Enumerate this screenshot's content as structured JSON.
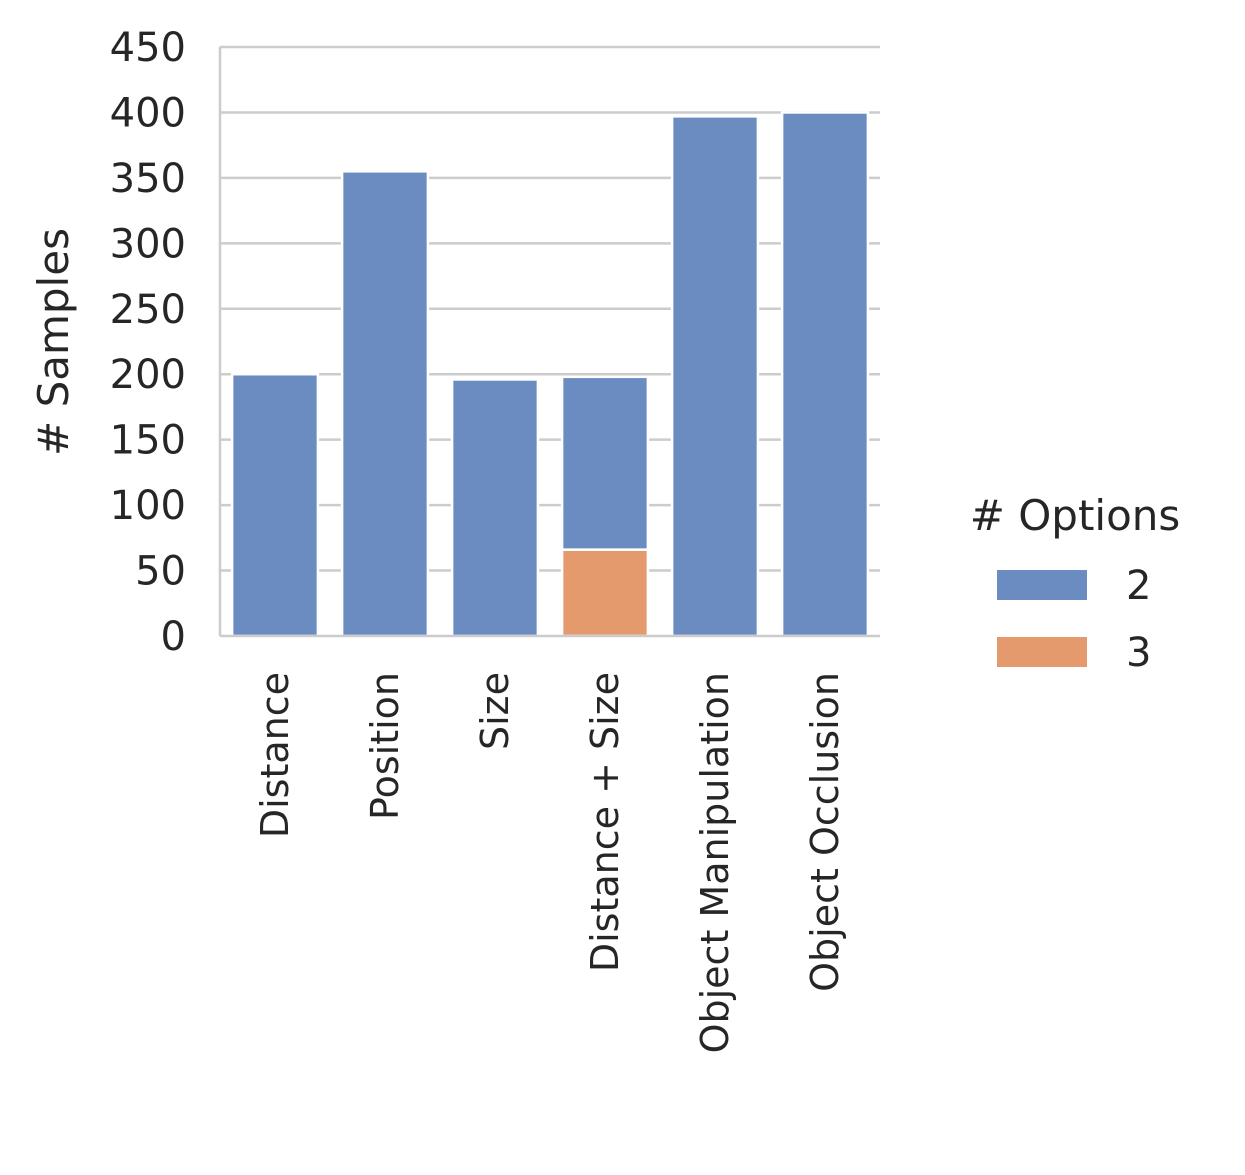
{
  "chart_data": {
    "type": "bar",
    "stacked": true,
    "title": "",
    "xlabel": "",
    "ylabel": "# Samples",
    "ylim": [
      0,
      450
    ],
    "yticks": [
      0,
      50,
      100,
      150,
      200,
      250,
      300,
      350,
      400,
      450
    ],
    "grid": "horizontal",
    "categories": [
      "Distance",
      "Position",
      "Size",
      "Distance + Size",
      "Object Manipulation",
      "Object Occlusion"
    ],
    "series": [
      {
        "name": "2",
        "color": "#6b8cc0",
        "values": [
          200,
          355,
          196,
          132,
          397,
          400
        ]
      },
      {
        "name": "3",
        "color": "#e59a6e",
        "values": [
          0,
          0,
          0,
          66,
          0,
          0
        ]
      }
    ],
    "stack_order": [
      "3",
      "2"
    ],
    "legend": {
      "title": "# Options",
      "placement": "right"
    }
  }
}
